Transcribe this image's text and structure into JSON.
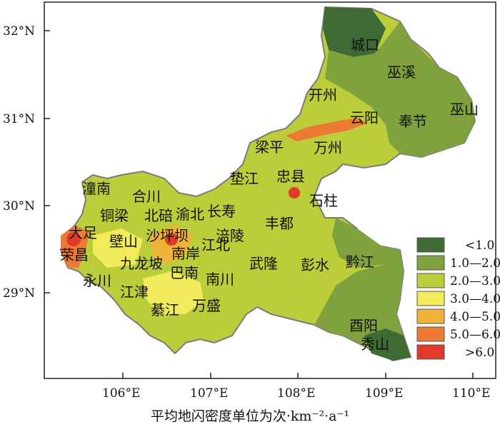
{
  "axes": {
    "x_ticks": [
      "106°E",
      "107°E",
      "108°E",
      "109°E",
      "110°E"
    ],
    "y_ticks": [
      "32°N",
      "31°N",
      "30°N",
      "29°N"
    ]
  },
  "legend": {
    "title": "",
    "classes": [
      {
        "label": "<1.0",
        "color": "#3e6a34"
      },
      {
        "label": "1.0—2.0",
        "color": "#7fa23e"
      },
      {
        "label": "2.0—3.0",
        "color": "#bccd3a"
      },
      {
        "label": "3.0—4.0",
        "color": "#f2ec5c"
      },
      {
        "label": "4.0—5.0",
        "color": "#f0b23a"
      },
      {
        "label": "5.0—6.0",
        "color": "#ea7a34"
      },
      {
        "label": ">6.0",
        "color": "#e23a2a"
      }
    ]
  },
  "regions": [
    "城口",
    "巫溪",
    "开州",
    "云阳",
    "奉节",
    "巫山",
    "梁平",
    "万州",
    "垫江",
    "忠县",
    "石柱",
    "潼南",
    "合川",
    "铜梁",
    "北碚",
    "渝北",
    "长寿",
    "大足",
    "荣昌",
    "壁山",
    "沙坪坝",
    "南岸",
    "江北",
    "涪陵",
    "丰都",
    "九龙坡",
    "巴南",
    "武隆",
    "彭水",
    "黔江",
    "永川",
    "江津",
    "南川",
    "綦江",
    "万盛",
    "酉阳",
    "秀山"
  ],
  "caption": "平均地闪密度单位为次·km⁻²·a⁻¹"
}
